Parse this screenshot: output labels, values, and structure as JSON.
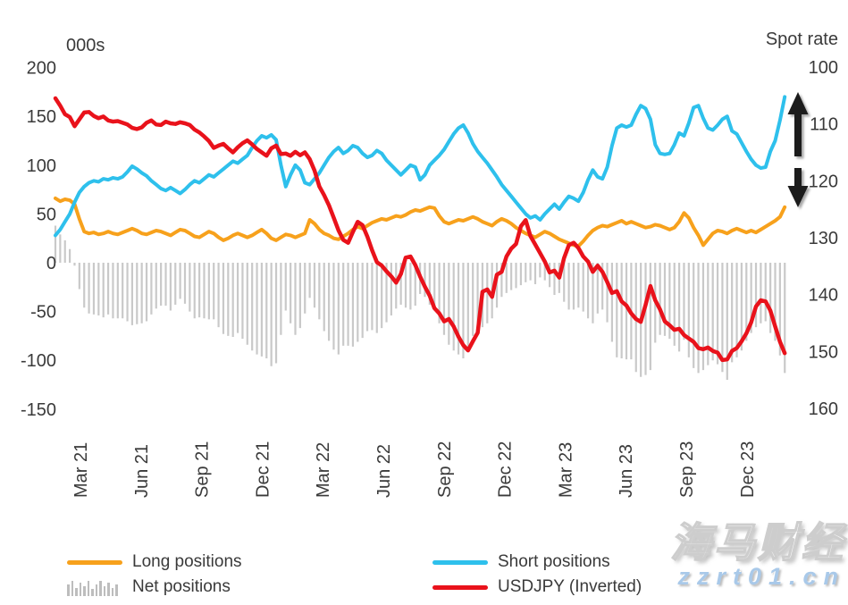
{
  "header": {
    "left_axis_title": "000s",
    "right_axis_title": "Spot rate"
  },
  "legend": [
    {
      "label": "Long positions",
      "swatch": "line",
      "color": "#F7A11C"
    },
    {
      "label": "Net positions",
      "swatch": "bars",
      "color": "#BDBDBD"
    },
    {
      "label": "Short positions",
      "swatch": "line",
      "color": "#2EC0EC"
    },
    {
      "label": "USDJPY (Inverted)",
      "swatch": "line",
      "color": "#E9121B"
    }
  ],
  "watermark": {
    "brand": "海马财经",
    "site": "zzrt01.cn",
    "brand_color": "#ffffff",
    "site_color": "#a9c9e9"
  },
  "chart_data": {
    "type": "combo",
    "frequency": "weekly",
    "n_points": 153,
    "x_tick_labels": [
      "Mar 21",
      "Jun 21",
      "Sep 21",
      "Dec 21",
      "Mar 22",
      "Jun 22",
      "Sep 22",
      "Dec 22",
      "Mar 23",
      "Jun 23",
      "Sep 23",
      "Dec 23"
    ],
    "left_axis": {
      "title": "000s",
      "ticks": [
        200,
        150,
        100,
        50,
        0,
        -50,
        -100,
        -150
      ],
      "range": [
        -150,
        200
      ],
      "grid": false
    },
    "right_axis": {
      "title": "Spot rate",
      "ticks": [
        100,
        110,
        120,
        130,
        140,
        150,
        160
      ],
      "range": [
        100,
        160
      ],
      "inverted": true,
      "grid": false
    },
    "annotation": {
      "name": "spot-range-double-arrow",
      "axis": "right",
      "arrow_up_span": [
        103,
        175
      ],
      "arrow_down_span": [
        188,
        232
      ],
      "color": "#1a1a1a"
    },
    "series": [
      {
        "name": "Long positions",
        "type": "line",
        "axis": "left",
        "color": "#F7A11C",
        "values": [
          66,
          63,
          65,
          64,
          60,
          45,
          32,
          30,
          31,
          29,
          30,
          32,
          30,
          29,
          31,
          33,
          35,
          33,
          30,
          29,
          31,
          33,
          32,
          30,
          28,
          31,
          34,
          33,
          30,
          27,
          26,
          29,
          32,
          30,
          26,
          23,
          25,
          28,
          30,
          28,
          26,
          28,
          31,
          34,
          30,
          25,
          23,
          26,
          29,
          28,
          26,
          28,
          30,
          44,
          40,
          34,
          30,
          28,
          25,
          24,
          27,
          30,
          34,
          37,
          35,
          38,
          41,
          43,
          45,
          44,
          46,
          48,
          47,
          49,
          52,
          54,
          53,
          55,
          57,
          56,
          48,
          42,
          40,
          42,
          44,
          43,
          45,
          47,
          45,
          42,
          40,
          38,
          42,
          45,
          43,
          40,
          36,
          33,
          30,
          28,
          26,
          29,
          32,
          30,
          27,
          24,
          22,
          20,
          18,
          17,
          22,
          28,
          33,
          36,
          38,
          37,
          39,
          41,
          43,
          40,
          42,
          40,
          38,
          36,
          37,
          39,
          38,
          36,
          34,
          36,
          42,
          51,
          46,
          36,
          28,
          18,
          24,
          30,
          33,
          32,
          30,
          33,
          35,
          33,
          31,
          33,
          31,
          34,
          37,
          40,
          43,
          47,
          57
        ]
      },
      {
        "name": "Short positions",
        "type": "line",
        "axis": "left",
        "color": "#2EC0EC",
        "values": [
          28,
          34,
          42,
          50,
          62,
          72,
          78,
          82,
          84,
          83,
          86,
          85,
          87,
          86,
          88,
          93,
          99,
          96,
          92,
          89,
          84,
          80,
          76,
          74,
          77,
          74,
          71,
          75,
          80,
          84,
          82,
          86,
          90,
          88,
          92,
          96,
          100,
          104,
          102,
          106,
          110,
          118,
          125,
          130,
          128,
          131,
          126,
          100,
          78,
          90,
          100,
          95,
          82,
          80,
          86,
          92,
          100,
          108,
          114,
          118,
          112,
          115,
          120,
          118,
          112,
          108,
          110,
          115,
          112,
          105,
          100,
          95,
          90,
          95,
          100,
          98,
          85,
          90,
          100,
          105,
          110,
          116,
          124,
          132,
          138,
          141,
          133,
          122,
          114,
          108,
          102,
          95,
          88,
          80,
          74,
          68,
          62,
          56,
          50,
          46,
          48,
          44,
          50,
          55,
          60,
          55,
          62,
          68,
          66,
          63,
          72,
          85,
          95,
          88,
          86,
          98,
          120,
          138,
          141,
          139,
          141,
          152,
          161,
          158,
          147,
          121,
          112,
          111,
          112,
          121,
          133,
          130,
          143,
          159,
          161,
          148,
          138,
          136,
          141,
          147,
          150,
          135,
          132,
          123,
          114,
          106,
          100,
          97,
          98,
          114,
          125,
          146,
          170
        ]
      },
      {
        "name": "Net positions",
        "type": "bar",
        "axis": "left",
        "color": "#C9C9C9",
        "values": [
          38,
          29,
          23,
          14,
          -3,
          -27,
          -46,
          -52,
          -53,
          -54,
          -56,
          -53,
          -57,
          -57,
          -57,
          -60,
          -64,
          -63,
          -62,
          -60,
          -53,
          -47,
          -44,
          -44,
          -49,
          -43,
          -37,
          -42,
          -50,
          -57,
          -56,
          -57,
          -58,
          -58,
          -66,
          -73,
          -75,
          -76,
          -72,
          -78,
          -84,
          -90,
          -94,
          -96,
          -98,
          -106,
          -103,
          -74,
          -49,
          -62,
          -74,
          -67,
          -52,
          -36,
          -46,
          -58,
          -70,
          -80,
          -89,
          -94,
          -85,
          -85,
          -86,
          -81,
          -77,
          -70,
          -69,
          -72,
          -67,
          -61,
          -54,
          -47,
          -43,
          -46,
          -48,
          -44,
          -32,
          -35,
          -43,
          -49,
          -62,
          -74,
          -84,
          -90,
          -94,
          -98,
          -88,
          -75,
          -69,
          -66,
          -62,
          -57,
          -46,
          -35,
          -31,
          -28,
          -26,
          -23,
          -20,
          -18,
          -22,
          -15,
          -18,
          -25,
          -33,
          -31,
          -40,
          -48,
          -48,
          -46,
          -50,
          -57,
          -62,
          -52,
          -48,
          -61,
          -81,
          -97,
          -98,
          -99,
          -99,
          -112,
          -117,
          -115,
          -110,
          -82,
          -74,
          -75,
          -78,
          -85,
          -91,
          -79,
          -97,
          -108,
          -113,
          -110,
          -105,
          -100,
          -104,
          -112,
          -120,
          -102,
          -97,
          -90,
          -80,
          -72,
          -66,
          -62,
          -60,
          -72,
          -80,
          -95,
          -113
        ]
      },
      {
        "name": "USDJPY (Inverted)",
        "type": "line",
        "axis": "right",
        "color": "#E9121B",
        "values": [
          105.5,
          106.8,
          108.3,
          108.8,
          110.4,
          109.2,
          108.0,
          107.9,
          108.6,
          109.0,
          108.7,
          109.4,
          109.6,
          109.5,
          109.8,
          110.1,
          110.7,
          110.9,
          110.6,
          109.8,
          109.4,
          110.1,
          110.2,
          109.6,
          109.9,
          110.0,
          109.7,
          109.9,
          110.2,
          111.0,
          111.5,
          112.2,
          113.0,
          114.2,
          113.8,
          113.5,
          114.3,
          115.0,
          114.1,
          113.4,
          112.9,
          113.6,
          114.4,
          115.0,
          115.6,
          114.3,
          113.8,
          115.3,
          115.2,
          115.6,
          114.9,
          115.5,
          115.0,
          116.2,
          118.2,
          121.0,
          122.5,
          124.3,
          126.5,
          128.7,
          130.4,
          130.9,
          129.0,
          127.2,
          127.8,
          129.8,
          132.2,
          134.3,
          134.9,
          135.9,
          136.8,
          137.9,
          136.4,
          133.5,
          133.3,
          134.8,
          136.8,
          138.6,
          140.2,
          142.4,
          143.3,
          144.7,
          144.3,
          145.6,
          147.4,
          148.9,
          149.8,
          148.2,
          146.7,
          139.5,
          139.1,
          140.4,
          136.5,
          136.0,
          133.3,
          131.9,
          131.1,
          128.0,
          126.9,
          129.7,
          131.2,
          132.7,
          134.2,
          136.1,
          135.8,
          137.0,
          133.6,
          131.3,
          130.9,
          131.8,
          133.3,
          134.2,
          136.0,
          134.9,
          136.0,
          137.8,
          139.7,
          139.4,
          141.2,
          141.9,
          143.3,
          144.3,
          144.8,
          141.8,
          138.5,
          141.0,
          142.6,
          144.7,
          145.4,
          146.2,
          146.0,
          147.1,
          147.7,
          148.3,
          149.4,
          149.6,
          149.3,
          149.9,
          150.2,
          151.5,
          151.4,
          149.9,
          149.4,
          148.2,
          146.8,
          144.9,
          142.1,
          141.0,
          141.2,
          142.8,
          145.6,
          148.3,
          150.3
        ]
      }
    ]
  }
}
